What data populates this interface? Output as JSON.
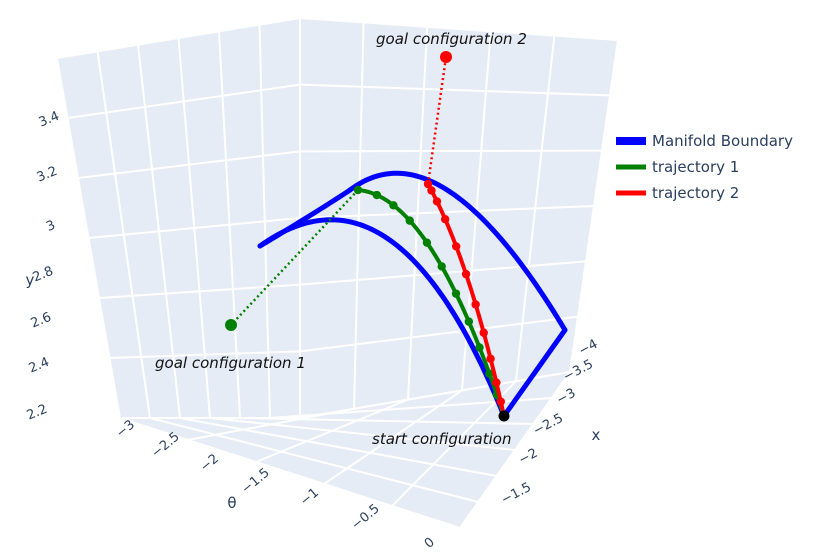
{
  "chart_data": {
    "type": "scatter3d",
    "axes": {
      "x": {
        "title": "x",
        "ticks": [
          "−4",
          "−3.5",
          "−3",
          "−2.5",
          "−2",
          "−1.5"
        ]
      },
      "y": {
        "title": "y",
        "ticks": [
          "2.2",
          "2.4",
          "2.6",
          "2.8",
          "3",
          "3.2",
          "3.4"
        ]
      },
      "theta": {
        "title": "θ",
        "ticks": [
          "−3",
          "−2.5",
          "−2",
          "−1.5",
          "−1",
          "−0.5",
          "0"
        ]
      }
    },
    "legend": {
      "placement": "right",
      "entries": [
        {
          "name": "Manifold Boundary",
          "color": "#0000ff"
        },
        {
          "name": "trajectory 1",
          "color": "#008000"
        },
        {
          "name": "trajectory 2",
          "color": "#ff0000"
        }
      ]
    },
    "annotations": {
      "goal1": "goal configuration 1",
      "goal2": "goal configuration 2",
      "start": "start configuration"
    },
    "colors": {
      "background": "#e5ecf6",
      "grid": "#ffffff",
      "boundary": "#0000ff",
      "trajectory1": "#008000",
      "trajectory2": "#ff0000",
      "start": "#000000"
    }
  }
}
